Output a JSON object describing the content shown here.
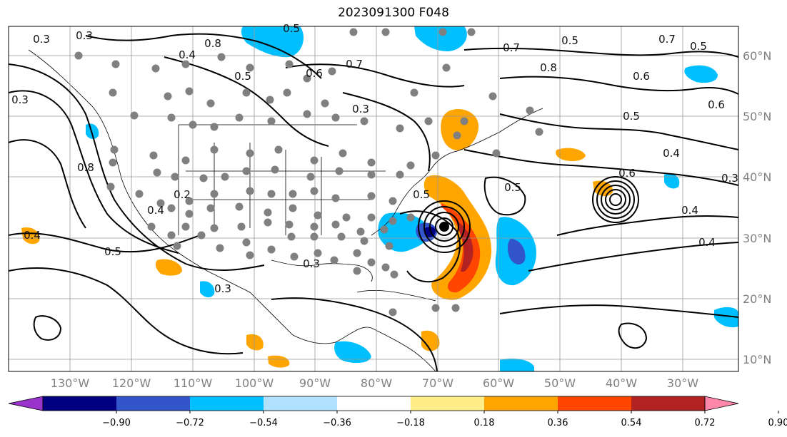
{
  "title": "2023091300 F048",
  "lon_ticks": [
    "130°W",
    "120°W",
    "110°W",
    "100°W",
    "90°W",
    "80°W",
    "70°W",
    "60°W",
    "50°W",
    "40°W",
    "30°W"
  ],
  "lat_ticks": [
    "60°N",
    "50°N",
    "40°N",
    "30°N",
    "20°N",
    "10°N"
  ],
  "contour_labels": [
    "0.3",
    "0.3",
    "0.3",
    "0.8",
    "0.4",
    "0.5",
    "0.5",
    "0.6",
    "0.7",
    "0.3",
    "0.7",
    "0.8",
    "0.5",
    "0.7",
    "0.5",
    "0.6",
    "0.5",
    "0.4",
    "0.6",
    "0.6",
    "0.3",
    "0.4",
    "0.5",
    "0.8",
    "0.4",
    "0.2",
    "0.5",
    "0.4",
    "0.5",
    "0.4",
    "0.3",
    "0.3"
  ],
  "colorbar": {
    "ticks": [
      "−0.90",
      "−0.72",
      "−0.54",
      "−0.36",
      "−0.18",
      "0.18",
      "0.36",
      "0.54",
      "0.72",
      "0.90"
    ],
    "colors": [
      "#9933cc",
      "#000080",
      "#3355cc",
      "#00bfff",
      "#b0e2ff",
      "#ffffff",
      "#ffee88",
      "#ffa500",
      "#ff4500",
      "#b22222",
      "#ff88aa"
    ]
  },
  "legend": {
    "colors": {
      "gray_dots": "#808080",
      "contours": "#000000"
    }
  }
}
